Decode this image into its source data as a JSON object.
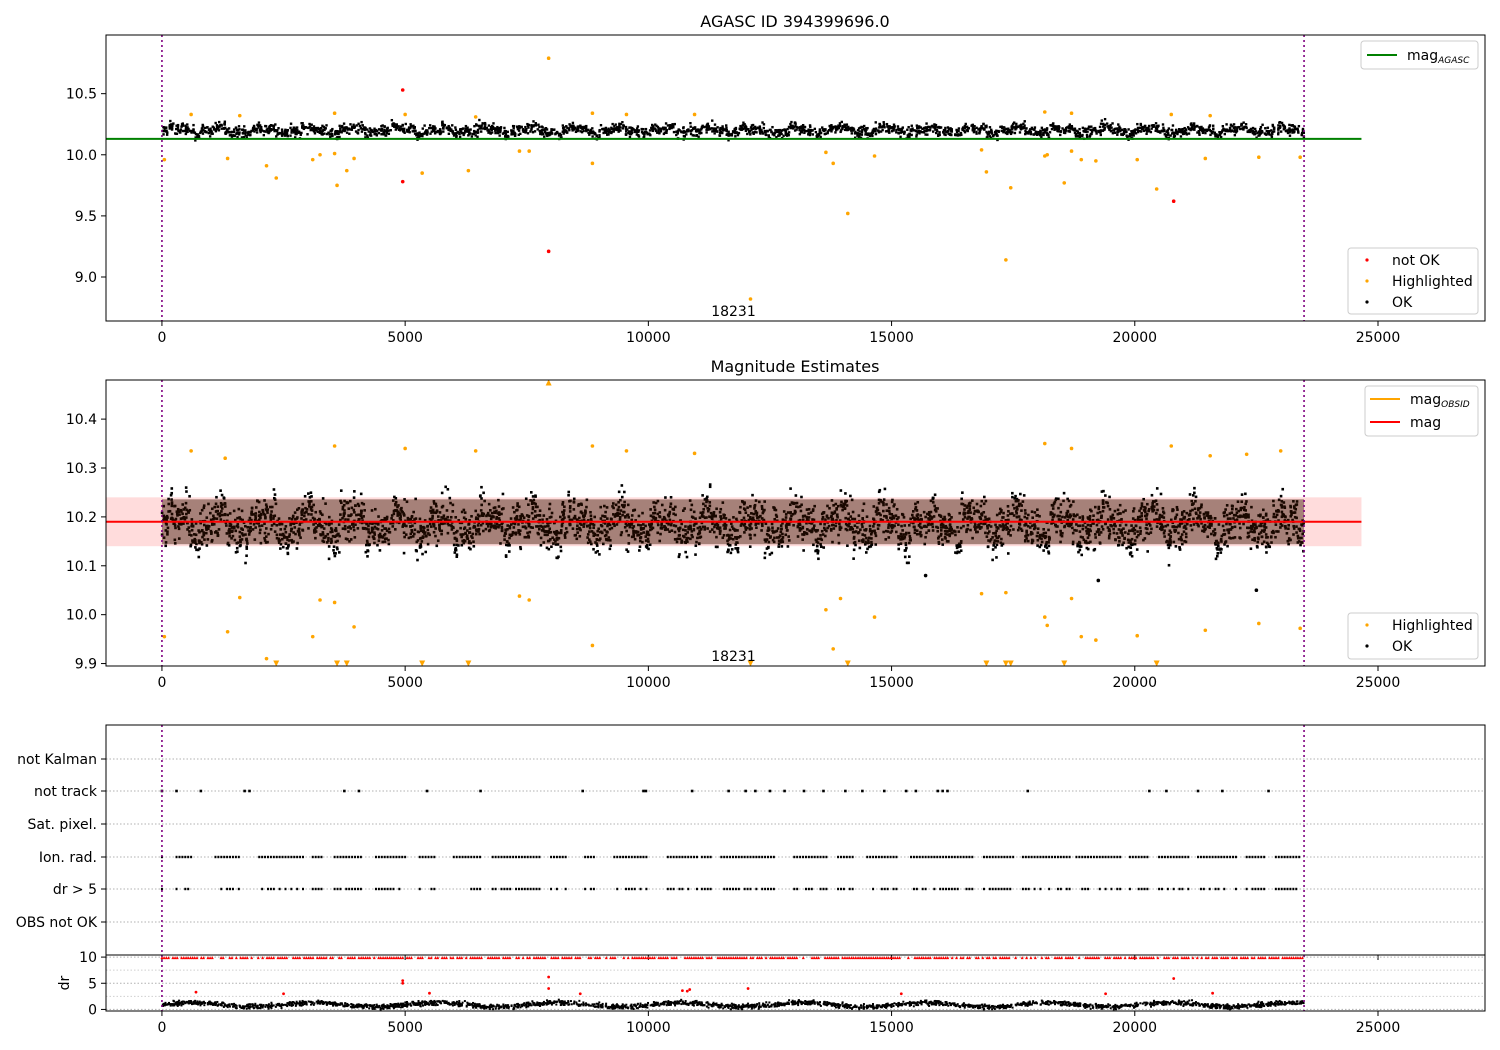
{
  "chart_data": [
    {
      "panel": "top",
      "type": "scatter",
      "title": "AGASC ID 394399696.0",
      "xlim": [
        -1150,
        27200
      ],
      "ylim": [
        8.64,
        10.98
      ],
      "xticks": [
        0,
        5000,
        10000,
        15000,
        20000,
        25000
      ],
      "yticks": [
        9.0,
        9.5,
        10.0,
        10.5
      ],
      "ytick_labels": [
        "9.0",
        "9.5",
        "10.0",
        "10.5"
      ],
      "vlines": [
        0,
        23480
      ],
      "annotation": {
        "x": 11750,
        "y": 8.72,
        "text": "18231"
      },
      "band": {
        "center": 10.2,
        "halfwidth": 0.06,
        "min": 10.1,
        "max": 10.33
      },
      "reference_lines": [
        {
          "name": "mag",
          "subscript": "AGASC",
          "color": "#008000",
          "y": 10.13,
          "x_range": [
            -1150,
            24660
          ]
        }
      ],
      "legend_lines": [
        {
          "label": "mag",
          "sub": "AGASC",
          "color": "#008000"
        }
      ],
      "legend_points": [
        {
          "label": "not OK",
          "color": "#ff0000"
        },
        {
          "label": "Highlighted",
          "color": "#ffa500"
        },
        {
          "label": "OK",
          "color": "#000000"
        }
      ],
      "series": [
        {
          "name": "Highlighted",
          "color": "#ffa500",
          "points": [
            [
              50,
              9.96
            ],
            [
              1350,
              9.97
            ],
            [
              2150,
              9.91
            ],
            [
              2350,
              9.81
            ],
            [
              3100,
              9.96
            ],
            [
              3250,
              10.0
            ],
            [
              3550,
              10.01
            ],
            [
              3600,
              9.75
            ],
            [
              3800,
              9.87
            ],
            [
              3950,
              9.97
            ],
            [
              5350,
              9.85
            ],
            [
              6300,
              9.87
            ],
            [
              7350,
              10.03
            ],
            [
              7550,
              10.03
            ],
            [
              8850,
              9.93
            ],
            [
              7950,
              10.79
            ],
            [
              12100,
              8.82
            ],
            [
              13650,
              10.02
            ],
            [
              13800,
              9.93
            ],
            [
              14100,
              9.52
            ],
            [
              14650,
              9.99
            ],
            [
              16850,
              10.04
            ],
            [
              16950,
              9.86
            ],
            [
              17350,
              9.14
            ],
            [
              17450,
              9.73
            ],
            [
              18150,
              9.99
            ],
            [
              18200,
              10.0
            ],
            [
              18550,
              9.77
            ],
            [
              18700,
              10.03
            ],
            [
              18900,
              9.96
            ],
            [
              19200,
              9.95
            ],
            [
              20050,
              9.96
            ],
            [
              20450,
              9.72
            ],
            [
              21450,
              9.97
            ],
            [
              22550,
              9.98
            ],
            [
              23400,
              9.98
            ],
            [
              600,
              10.33
            ],
            [
              1600,
              10.32
            ],
            [
              3550,
              10.34
            ],
            [
              5000,
              10.33
            ],
            [
              6450,
              10.31
            ],
            [
              8850,
              10.34
            ],
            [
              9550,
              10.33
            ],
            [
              10950,
              10.33
            ],
            [
              18150,
              10.35
            ],
            [
              18700,
              10.34
            ],
            [
              20750,
              10.33
            ],
            [
              21550,
              10.32
            ]
          ]
        },
        {
          "name": "not OK",
          "color": "#ff0000",
          "points": [
            [
              4950,
              10.53
            ],
            [
              4950,
              9.78
            ],
            [
              7950,
              9.21
            ],
            [
              20800,
              9.62
            ]
          ]
        }
      ]
    },
    {
      "panel": "middle",
      "type": "scatter",
      "title": "Magnitude Estimates",
      "xlim": [
        -1150,
        27200
      ],
      "ylim": [
        9.895,
        10.48
      ],
      "xticks": [
        0,
        5000,
        10000,
        15000,
        20000,
        25000
      ],
      "yticks": [
        9.9,
        10.0,
        10.1,
        10.2,
        10.3,
        10.4
      ],
      "ytick_labels": [
        "9.9",
        "10.0",
        "10.1",
        "10.2",
        "10.3",
        "10.4"
      ],
      "vlines": [
        0,
        23480
      ],
      "annotation": {
        "x": 11750,
        "y": 9.915,
        "text": "18231"
      },
      "band": {
        "center": 10.185,
        "halfwidth": 0.06,
        "min": 10.07,
        "max": 10.32
      },
      "shade": {
        "y0": 10.14,
        "y1": 10.24,
        "x_range": [
          -1150,
          24660
        ],
        "color": "#ffc0c0"
      },
      "reference_lines": [
        {
          "name": "mag",
          "color": "#ff0000",
          "y": 10.19,
          "x_range": [
            -1150,
            24660
          ]
        }
      ],
      "legend_lines": [
        {
          "label": "mag",
          "sub": "OBSID",
          "color": "#ffa500"
        },
        {
          "label": "mag",
          "sub": "",
          "color": "#ff0000"
        }
      ],
      "legend_points": [
        {
          "label": "Highlighted",
          "color": "#ffa500"
        },
        {
          "label": "OK",
          "color": "#000000"
        }
      ],
      "series": [
        {
          "name": "Highlighted",
          "color": "#ffa500",
          "points": [
            [
              50,
              9.955
            ],
            [
              1350,
              9.965
            ],
            [
              1600,
              10.035
            ],
            [
              2150,
              9.91
            ],
            [
              3100,
              9.955
            ],
            [
              3250,
              10.03
            ],
            [
              3550,
              10.025
            ],
            [
              3950,
              9.975
            ],
            [
              7350,
              10.038
            ],
            [
              7550,
              10.03
            ],
            [
              8850,
              9.937
            ],
            [
              13650,
              10.01
            ],
            [
              13800,
              9.93
            ],
            [
              13950,
              10.033
            ],
            [
              14650,
              9.995
            ],
            [
              16850,
              10.043
            ],
            [
              17350,
              10.045
            ],
            [
              18150,
              9.995
            ],
            [
              18200,
              9.978
            ],
            [
              18700,
              10.033
            ],
            [
              18900,
              9.955
            ],
            [
              19200,
              9.948
            ],
            [
              20050,
              9.957
            ],
            [
              21450,
              9.968
            ],
            [
              22550,
              9.982
            ],
            [
              23400,
              9.972
            ],
            [
              600,
              10.335
            ],
            [
              1300,
              10.32
            ],
            [
              3550,
              10.345
            ],
            [
              5000,
              10.34
            ],
            [
              6450,
              10.335
            ],
            [
              8850,
              10.345
            ],
            [
              9550,
              10.335
            ],
            [
              10950,
              10.33
            ],
            [
              18150,
              10.35
            ],
            [
              18700,
              10.34
            ],
            [
              20750,
              10.345
            ],
            [
              21550,
              10.325
            ],
            [
              22300,
              10.328
            ],
            [
              23000,
              10.335
            ]
          ]
        },
        {
          "name": "Highlighted (clipped)",
          "color": "#ffa500",
          "marker": "triangle",
          "points": [
            [
              2350,
              9.9
            ],
            [
              3600,
              9.9
            ],
            [
              3800,
              9.9
            ],
            [
              5350,
              9.9
            ],
            [
              6300,
              9.9
            ],
            [
              12100,
              9.9
            ],
            [
              14100,
              9.9
            ],
            [
              16950,
              9.9
            ],
            [
              17350,
              9.9
            ],
            [
              17450,
              9.9
            ],
            [
              18550,
              9.9
            ],
            [
              20450,
              9.9
            ],
            [
              7950,
              10.475
            ]
          ]
        },
        {
          "name": "OK (outliers)",
          "color": "#000000",
          "points": [
            [
              19250,
              10.07
            ],
            [
              22500,
              10.05
            ],
            [
              15700,
              10.08
            ]
          ]
        }
      ]
    },
    {
      "panel": "flags",
      "type": "scatter",
      "xlim": [
        -1150,
        27200
      ],
      "categories": [
        "not Kalman",
        "not track",
        "Sat. pixel.",
        "Ion. rad.",
        "dr > 5",
        "OBS not OK"
      ],
      "vlines": [
        0,
        23480
      ],
      "series": [
        {
          "name": "not track",
          "color": "#000000",
          "x": [
            0,
            300,
            800,
            1700,
            1800,
            3750,
            4050,
            5450,
            6550,
            8650,
            9900,
            9950,
            10900,
            11650,
            12000,
            12200,
            12500,
            12800,
            13200,
            13600,
            14050,
            14400,
            14850,
            15300,
            15500,
            15950,
            16050,
            16150,
            17800,
            20300,
            20650,
            21300,
            21800,
            22750
          ]
        }
      ]
    },
    {
      "panel": "dr",
      "type": "scatter",
      "xlim": [
        -1150,
        27200
      ],
      "ylim": [
        -0.3,
        10.4
      ],
      "yticks": [
        0,
        5,
        10
      ],
      "ytick_labels": [
        "0",
        "5",
        "10"
      ],
      "ylabel": "dr",
      "xticks": [
        0,
        5000,
        10000,
        15000,
        20000,
        25000
      ],
      "vlines": [
        0,
        23480
      ],
      "series": [
        {
          "name": "dr outliers",
          "color": "#ff0000",
          "points": [
            [
              4950,
              5.5
            ],
            [
              4950,
              5.0
            ],
            [
              7950,
              6.2
            ],
            [
              7950,
              4.0
            ],
            [
              12050,
              4.0
            ],
            [
              20800,
              5.9
            ],
            [
              10800,
              3.5
            ],
            [
              10850,
              3.8
            ],
            [
              10700,
              3.6
            ],
            [
              700,
              3.3
            ],
            [
              2500,
              3.0
            ],
            [
              5500,
              3.1
            ],
            [
              8600,
              3.0
            ],
            [
              15200,
              3.0
            ],
            [
              19400,
              3.0
            ],
            [
              21600,
              3.1
            ]
          ]
        }
      ]
    }
  ]
}
